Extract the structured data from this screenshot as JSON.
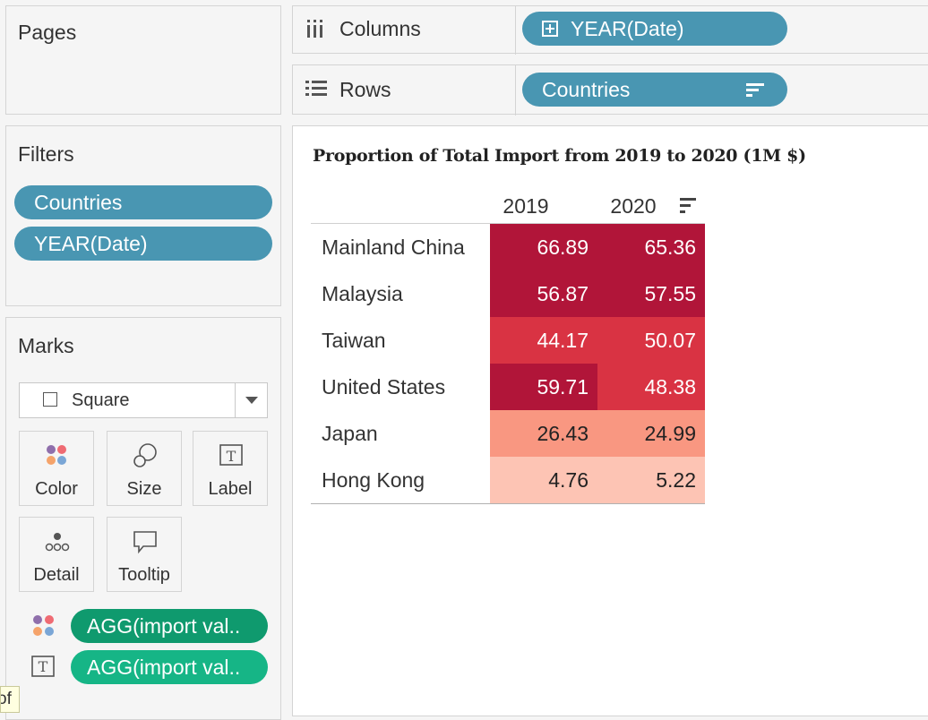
{
  "pages": {
    "title": "Pages"
  },
  "shelves": {
    "columns": {
      "label": "Columns",
      "pill": "YEAR(Date)"
    },
    "rows": {
      "label": "Rows",
      "pill": "Countries"
    }
  },
  "filters": {
    "title": "Filters",
    "items": [
      "Countries",
      "YEAR(Date)"
    ]
  },
  "marks": {
    "title": "Marks",
    "mark_type": "Square",
    "cards": [
      "Color",
      "Size",
      "Label",
      "Detail",
      "Tooltip"
    ],
    "fields": [
      "AGG(import val..",
      "AGG(import val.."
    ]
  },
  "tooltip_fragment": "of",
  "colors": {
    "pill_blue": "#4996b2",
    "agg_color": "#0f9a6e",
    "agg_label": "#16b586"
  },
  "chart_data": {
    "type": "table",
    "title": "Proportion of Total Import from 2019 to 2020 (1M $)",
    "columns": [
      "2019",
      "2020"
    ],
    "rows": [
      {
        "country": "Mainland China",
        "values": [
          "66.89",
          "65.36"
        ]
      },
      {
        "country": "Malaysia",
        "values": [
          "56.87",
          "57.55"
        ]
      },
      {
        "country": "Taiwan",
        "values": [
          "44.17",
          "50.07"
        ]
      },
      {
        "country": "United States",
        "values": [
          "59.71",
          "48.38"
        ]
      },
      {
        "country": "Japan",
        "values": [
          "26.43",
          "24.99"
        ]
      },
      {
        "country": "Hong Kong",
        "values": [
          "4.76",
          "5.22"
        ]
      }
    ],
    "cell_colors": [
      [
        "#b11539",
        "#b11539"
      ],
      [
        "#b11539",
        "#b11539"
      ],
      [
        "#d93343",
        "#d93343"
      ],
      [
        "#b11539",
        "#d93343"
      ],
      [
        "#f99781",
        "#f99781"
      ],
      [
        "#fdc4b4",
        "#fdc4b4"
      ]
    ]
  }
}
